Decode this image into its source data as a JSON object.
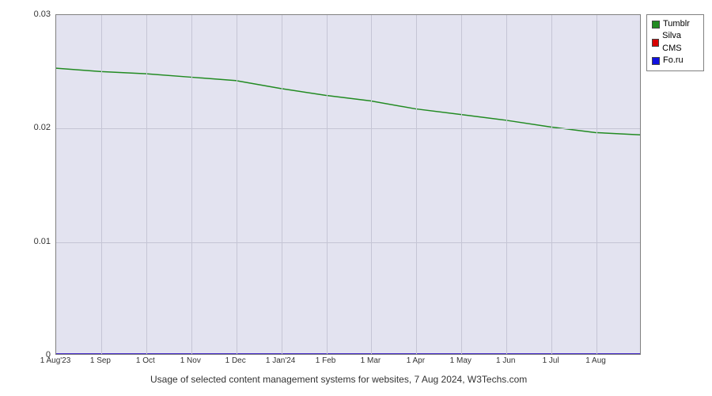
{
  "chart": {
    "type": "line",
    "caption": "Usage of selected content management systems for websites, 7 Aug 2024, W3Techs.com",
    "background_color": "#e3e3f0",
    "grid_color": "#c5c5d5",
    "border_color": "#808080",
    "label_fontsize": 11,
    "tick_fontsize": 10,
    "caption_fontsize": 12,
    "ylim": [
      0,
      0.03
    ],
    "yticks": [
      0,
      0.01,
      0.02,
      0.03
    ],
    "ytick_labels": [
      "0",
      "0.01",
      "0.02",
      "0.03"
    ],
    "x_categories": [
      "1 Aug'23",
      "1 Sep",
      "1 Oct",
      "1 Nov",
      "1 Dec",
      "1 Jan'24",
      "1 Feb",
      "1 Mar",
      "1 Apr",
      "1 May",
      "1 Jun",
      "1 Jul",
      "1 Aug"
    ],
    "series": [
      {
        "name": "Tumblr",
        "color": "#228b22",
        "line_width": 1.5,
        "values": [
          0.0253,
          0.025,
          0.0248,
          0.0245,
          0.0242,
          0.0235,
          0.0229,
          0.0224,
          0.0217,
          0.0212,
          0.0207,
          0.0201,
          0.0196,
          0.0194
        ]
      },
      {
        "name": "Silva CMS",
        "color": "#d80000",
        "line_width": 1.5,
        "values": [
          0,
          0,
          0,
          0,
          0,
          0,
          0,
          0,
          0,
          0,
          0,
          0,
          0,
          0
        ]
      },
      {
        "name": "Fo.ru",
        "color": "#1010e0",
        "line_width": 1.5,
        "values": [
          0,
          0,
          0,
          0,
          0,
          0,
          0,
          0,
          0,
          0,
          0,
          0,
          0,
          0
        ]
      }
    ]
  },
  "legend": {
    "border_color": "#808080",
    "background": "#ffffff",
    "items": [
      {
        "label": "Tumblr",
        "color": "#228b22"
      },
      {
        "label": "Silva CMS",
        "color": "#d80000"
      },
      {
        "label": "Fo.ru",
        "color": "#1010e0"
      }
    ]
  }
}
